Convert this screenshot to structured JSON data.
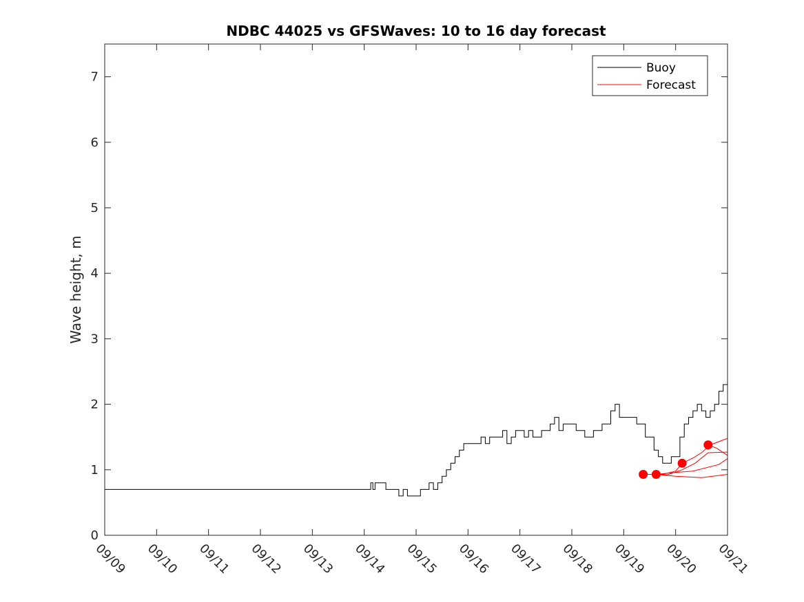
{
  "chart_data": {
    "type": "line",
    "title": "NDBC 44025 vs GFSWaves: 10 to 16 day forecast",
    "xlabel": "",
    "ylabel": "Wave height, m",
    "x_axis": {
      "type": "date",
      "range_days": [
        0,
        12
      ],
      "tick_labels": [
        "09/09",
        "09/10",
        "09/11",
        "09/12",
        "09/13",
        "09/14",
        "09/15",
        "09/16",
        "09/17",
        "09/18",
        "09/19",
        "09/20",
        "09/21"
      ]
    },
    "ylim": [
      0,
      7.5
    ],
    "yticks": [
      0,
      1,
      2,
      3,
      4,
      5,
      6,
      7
    ],
    "grid": false,
    "legend": {
      "placement": "top-right",
      "entries": [
        "Buoy",
        "Forecast"
      ]
    },
    "colors": {
      "buoy": "#000000",
      "forecast": "#ff0000"
    },
    "series": [
      {
        "name": "Buoy",
        "style": "step",
        "x": [
          "09/09 00:00",
          "09/14 02:00",
          "09/14 03:00",
          "09/14 04:00",
          "09/14 05:00",
          "09/14 06:00",
          "09/14 08:00",
          "09/14 10:00",
          "09/14 14:00",
          "09/14 16:00",
          "09/14 18:00",
          "09/14 20:00",
          "09/15 02:00",
          "09/15 04:00",
          "09/15 06:00",
          "09/15 08:00",
          "09/15 10:00",
          "09/15 12:00",
          "09/15 14:00",
          "09/15 16:00",
          "09/15 18:00",
          "09/15 20:00",
          "09/15 22:00",
          "09/16 02:00",
          "09/16 06:00",
          "09/16 08:00",
          "09/16 10:00",
          "09/16 14:00",
          "09/16 16:00",
          "09/16 18:00",
          "09/16 20:00",
          "09/16 22:00",
          "09/17 02:00",
          "09/17 04:00",
          "09/17 06:00",
          "09/17 10:00",
          "09/17 14:00",
          "09/17 16:00",
          "09/17 18:00",
          "09/17 20:00",
          "09/18 02:00",
          "09/18 06:00",
          "09/18 10:00",
          "09/18 14:00",
          "09/18 18:00",
          "09/18 20:00",
          "09/18 22:00",
          "09/19 02:00",
          "09/19 06:00",
          "09/19 10:00",
          "09/19 14:00",
          "09/19 16:00",
          "09/19 18:00",
          "09/19 20:00",
          "09/19 22:00",
          "09/20 02:00",
          "09/20 04:00",
          "09/20 06:00",
          "09/20 08:00",
          "09/20 10:00",
          "09/20 12:00",
          "09/20 14:00",
          "09/20 16:00",
          "09/20 18:00",
          "09/20 20:00",
          "09/20 22:00"
        ],
        "y": [
          0.7,
          0.7,
          0.8,
          0.7,
          0.8,
          0.8,
          0.8,
          0.7,
          0.7,
          0.6,
          0.7,
          0.6,
          0.7,
          0.7,
          0.8,
          0.7,
          0.8,
          0.9,
          1.0,
          1.1,
          1.2,
          1.3,
          1.4,
          1.4,
          1.5,
          1.4,
          1.5,
          1.5,
          1.6,
          1.4,
          1.5,
          1.6,
          1.5,
          1.6,
          1.5,
          1.6,
          1.7,
          1.8,
          1.6,
          1.7,
          1.6,
          1.5,
          1.6,
          1.7,
          1.9,
          2.0,
          1.8,
          1.8,
          1.7,
          1.5,
          1.3,
          1.2,
          1.1,
          1.1,
          1.2,
          1.5,
          1.7,
          1.8,
          1.9,
          2.0,
          1.9,
          1.8,
          1.9,
          2.0,
          2.2,
          2.3
        ]
      },
      {
        "name": "Forecast",
        "x": [
          "09/19 09:00",
          "09/19 15:00",
          "09/20 00:00",
          "09/20 08:00",
          "09/20 20:00",
          "09/21 00:00"
        ],
        "y": [
          0.93,
          0.93,
          0.96,
          0.98,
          1.08,
          1.17
        ]
      },
      {
        "name": "Forecast",
        "x": [
          "09/19 15:00",
          "09/19 18:00",
          "09/20 00:00",
          "09/20 03:00",
          "09/20 08:00",
          "09/20 12:00",
          "09/20 16:00",
          "09/21 00:00"
        ],
        "y": [
          0.93,
          0.93,
          0.98,
          1.1,
          1.18,
          1.26,
          1.38,
          1.48
        ]
      },
      {
        "name": "Forecast",
        "x": [
          "09/19 15:00",
          "09/19 20:00",
          "09/20 03:00",
          "09/20 09:00",
          "09/20 15:00",
          "09/21 00:00"
        ],
        "y": [
          0.93,
          0.92,
          1.0,
          1.1,
          1.26,
          1.27
        ]
      },
      {
        "name": "Forecast",
        "x": [
          "09/20 15:00",
          "09/20 19:00",
          "09/21 00:00"
        ],
        "y": [
          1.38,
          1.33,
          1.22
        ]
      },
      {
        "name": "Forecast",
        "x": [
          "09/19 15:00",
          "09/20 00:00",
          "09/20 12:00",
          "09/21 00:00"
        ],
        "y": [
          0.93,
          0.9,
          0.88,
          0.93
        ]
      }
    ],
    "markers": {
      "x": [
        "09/19 09:00",
        "09/19 15:00",
        "09/20 03:00",
        "09/20 15:00"
      ],
      "y": [
        0.93,
        0.93,
        1.1,
        1.38
      ]
    }
  }
}
